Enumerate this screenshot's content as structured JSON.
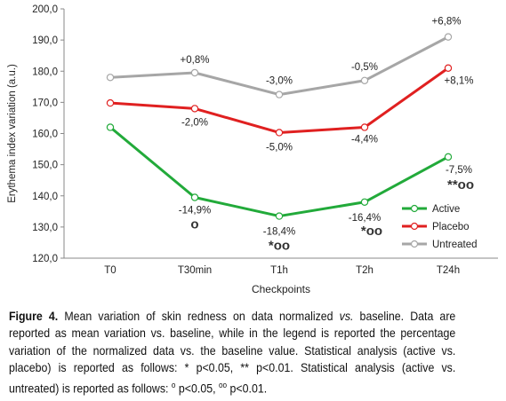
{
  "chart_data": {
    "type": "line",
    "categories": [
      "T0",
      "T30min",
      "T1h",
      "T2h",
      "T24h"
    ],
    "xlabel": "Checkpoints",
    "ylabel": "Erythema index variation (a.u.)",
    "ylim": [
      120,
      200
    ],
    "yticks": [
      "120,0",
      "130,0",
      "140,0",
      "150,0",
      "160,0",
      "170,0",
      "180,0",
      "190,0",
      "200,0"
    ],
    "grid": false,
    "legend_position": "bottom-right",
    "series": [
      {
        "name": "Active",
        "color": "#22aa3a",
        "values": [
          162.0,
          139.5,
          133.5,
          138.0,
          152.5
        ],
        "labels": [
          "",
          "-14,9%",
          "-18,4%",
          "-16,4%",
          "-7,5%"
        ],
        "significance": [
          "",
          "o",
          "*oo",
          "*oo",
          "**oo"
        ]
      },
      {
        "name": "Placebo",
        "color": "#e02020",
        "values": [
          169.8,
          168.0,
          160.3,
          162.0,
          181.0
        ],
        "labels": [
          "",
          "-2,0%",
          "-5,0%",
          "-4,4%",
          "+8,1%"
        ]
      },
      {
        "name": "Untreated",
        "color": "#a6a6a6",
        "values": [
          178.0,
          179.5,
          172.5,
          177.0,
          191.0
        ],
        "labels": [
          "",
          "+0,8%",
          "-3,0%",
          "-0,5%",
          "+6,8%"
        ]
      }
    ]
  },
  "caption": {
    "figure_label": "Figure 4.",
    "text_1": " Mean variation of skin redness on data normalized ",
    "vs_1": "vs.",
    "text_2": " baseline. Data are reported as mean variation vs. baseline, while in the legend is reported the percentage variation of the normalized data vs. the baseline value. Statistical analysis (active vs. placebo) is reported as follows: * p<0.05, ** p<0.01. Statistical analysis (active vs. untreated) is reported as follows: ",
    "text_3": "o",
    "text_4": " p<0.05, ",
    "text_5": "oo",
    "text_6": " p<0.01."
  }
}
